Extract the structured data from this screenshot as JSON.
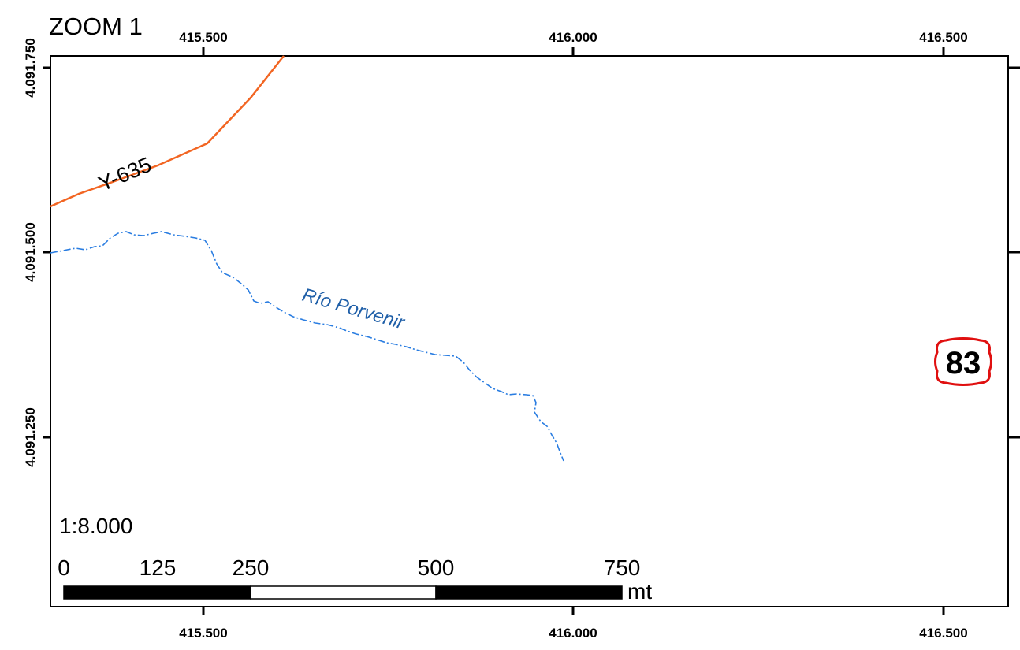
{
  "title": "ZOOM 1",
  "scale_ratio": "1:8.000",
  "x_ticks": [
    "415.500",
    "416.000",
    "416.500"
  ],
  "y_ticks": [
    "4.091.750",
    "4.091.500",
    "4.091.250"
  ],
  "scale_bar": {
    "labels": [
      "0",
      "125",
      "250",
      "500",
      "750"
    ],
    "unit": "mt"
  },
  "road": {
    "label": "Y-635",
    "color": "#f26522"
  },
  "river": {
    "label": "Río Porvenir",
    "color": "#2a7de1"
  },
  "route_shield": {
    "number": "83",
    "border_color": "#e01010"
  }
}
